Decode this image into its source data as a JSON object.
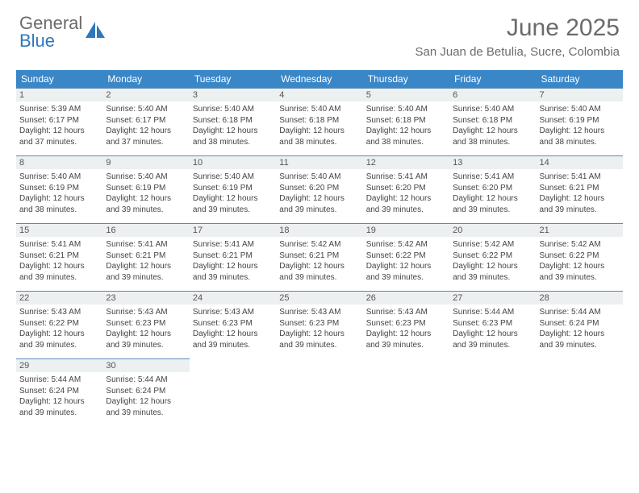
{
  "brand": {
    "part1": "General",
    "part2": "Blue"
  },
  "title": "June 2025",
  "location": "San Juan de Betulia, Sucre, Colombia",
  "colors": {
    "header_bg": "#3a87c8",
    "header_text": "#ffffff",
    "daynum_bg": "#edf0f1",
    "border": "#6f94ba",
    "brand_gray": "#6b6b6b",
    "brand_blue": "#2f77bb"
  },
  "weekdays": [
    "Sunday",
    "Monday",
    "Tuesday",
    "Wednesday",
    "Thursday",
    "Friday",
    "Saturday"
  ],
  "weeks": [
    [
      {
        "n": "1",
        "sr": "Sunrise: 5:39 AM",
        "ss": "Sunset: 6:17 PM",
        "d1": "Daylight: 12 hours",
        "d2": "and 37 minutes."
      },
      {
        "n": "2",
        "sr": "Sunrise: 5:40 AM",
        "ss": "Sunset: 6:17 PM",
        "d1": "Daylight: 12 hours",
        "d2": "and 37 minutes."
      },
      {
        "n": "3",
        "sr": "Sunrise: 5:40 AM",
        "ss": "Sunset: 6:18 PM",
        "d1": "Daylight: 12 hours",
        "d2": "and 38 minutes."
      },
      {
        "n": "4",
        "sr": "Sunrise: 5:40 AM",
        "ss": "Sunset: 6:18 PM",
        "d1": "Daylight: 12 hours",
        "d2": "and 38 minutes."
      },
      {
        "n": "5",
        "sr": "Sunrise: 5:40 AM",
        "ss": "Sunset: 6:18 PM",
        "d1": "Daylight: 12 hours",
        "d2": "and 38 minutes."
      },
      {
        "n": "6",
        "sr": "Sunrise: 5:40 AM",
        "ss": "Sunset: 6:18 PM",
        "d1": "Daylight: 12 hours",
        "d2": "and 38 minutes."
      },
      {
        "n": "7",
        "sr": "Sunrise: 5:40 AM",
        "ss": "Sunset: 6:19 PM",
        "d1": "Daylight: 12 hours",
        "d2": "and 38 minutes."
      }
    ],
    [
      {
        "n": "8",
        "sr": "Sunrise: 5:40 AM",
        "ss": "Sunset: 6:19 PM",
        "d1": "Daylight: 12 hours",
        "d2": "and 38 minutes."
      },
      {
        "n": "9",
        "sr": "Sunrise: 5:40 AM",
        "ss": "Sunset: 6:19 PM",
        "d1": "Daylight: 12 hours",
        "d2": "and 39 minutes."
      },
      {
        "n": "10",
        "sr": "Sunrise: 5:40 AM",
        "ss": "Sunset: 6:19 PM",
        "d1": "Daylight: 12 hours",
        "d2": "and 39 minutes."
      },
      {
        "n": "11",
        "sr": "Sunrise: 5:40 AM",
        "ss": "Sunset: 6:20 PM",
        "d1": "Daylight: 12 hours",
        "d2": "and 39 minutes."
      },
      {
        "n": "12",
        "sr": "Sunrise: 5:41 AM",
        "ss": "Sunset: 6:20 PM",
        "d1": "Daylight: 12 hours",
        "d2": "and 39 minutes."
      },
      {
        "n": "13",
        "sr": "Sunrise: 5:41 AM",
        "ss": "Sunset: 6:20 PM",
        "d1": "Daylight: 12 hours",
        "d2": "and 39 minutes."
      },
      {
        "n": "14",
        "sr": "Sunrise: 5:41 AM",
        "ss": "Sunset: 6:21 PM",
        "d1": "Daylight: 12 hours",
        "d2": "and 39 minutes."
      }
    ],
    [
      {
        "n": "15",
        "sr": "Sunrise: 5:41 AM",
        "ss": "Sunset: 6:21 PM",
        "d1": "Daylight: 12 hours",
        "d2": "and 39 minutes."
      },
      {
        "n": "16",
        "sr": "Sunrise: 5:41 AM",
        "ss": "Sunset: 6:21 PM",
        "d1": "Daylight: 12 hours",
        "d2": "and 39 minutes."
      },
      {
        "n": "17",
        "sr": "Sunrise: 5:41 AM",
        "ss": "Sunset: 6:21 PM",
        "d1": "Daylight: 12 hours",
        "d2": "and 39 minutes."
      },
      {
        "n": "18",
        "sr": "Sunrise: 5:42 AM",
        "ss": "Sunset: 6:21 PM",
        "d1": "Daylight: 12 hours",
        "d2": "and 39 minutes."
      },
      {
        "n": "19",
        "sr": "Sunrise: 5:42 AM",
        "ss": "Sunset: 6:22 PM",
        "d1": "Daylight: 12 hours",
        "d2": "and 39 minutes."
      },
      {
        "n": "20",
        "sr": "Sunrise: 5:42 AM",
        "ss": "Sunset: 6:22 PM",
        "d1": "Daylight: 12 hours",
        "d2": "and 39 minutes."
      },
      {
        "n": "21",
        "sr": "Sunrise: 5:42 AM",
        "ss": "Sunset: 6:22 PM",
        "d1": "Daylight: 12 hours",
        "d2": "and 39 minutes."
      }
    ],
    [
      {
        "n": "22",
        "sr": "Sunrise: 5:43 AM",
        "ss": "Sunset: 6:22 PM",
        "d1": "Daylight: 12 hours",
        "d2": "and 39 minutes."
      },
      {
        "n": "23",
        "sr": "Sunrise: 5:43 AM",
        "ss": "Sunset: 6:23 PM",
        "d1": "Daylight: 12 hours",
        "d2": "and 39 minutes."
      },
      {
        "n": "24",
        "sr": "Sunrise: 5:43 AM",
        "ss": "Sunset: 6:23 PM",
        "d1": "Daylight: 12 hours",
        "d2": "and 39 minutes."
      },
      {
        "n": "25",
        "sr": "Sunrise: 5:43 AM",
        "ss": "Sunset: 6:23 PM",
        "d1": "Daylight: 12 hours",
        "d2": "and 39 minutes."
      },
      {
        "n": "26",
        "sr": "Sunrise: 5:43 AM",
        "ss": "Sunset: 6:23 PM",
        "d1": "Daylight: 12 hours",
        "d2": "and 39 minutes."
      },
      {
        "n": "27",
        "sr": "Sunrise: 5:44 AM",
        "ss": "Sunset: 6:23 PM",
        "d1": "Daylight: 12 hours",
        "d2": "and 39 minutes."
      },
      {
        "n": "28",
        "sr": "Sunrise: 5:44 AM",
        "ss": "Sunset: 6:24 PM",
        "d1": "Daylight: 12 hours",
        "d2": "and 39 minutes."
      }
    ],
    [
      {
        "n": "29",
        "sr": "Sunrise: 5:44 AM",
        "ss": "Sunset: 6:24 PM",
        "d1": "Daylight: 12 hours",
        "d2": "and 39 minutes."
      },
      {
        "n": "30",
        "sr": "Sunrise: 5:44 AM",
        "ss": "Sunset: 6:24 PM",
        "d1": "Daylight: 12 hours",
        "d2": "and 39 minutes."
      },
      null,
      null,
      null,
      null,
      null
    ]
  ]
}
